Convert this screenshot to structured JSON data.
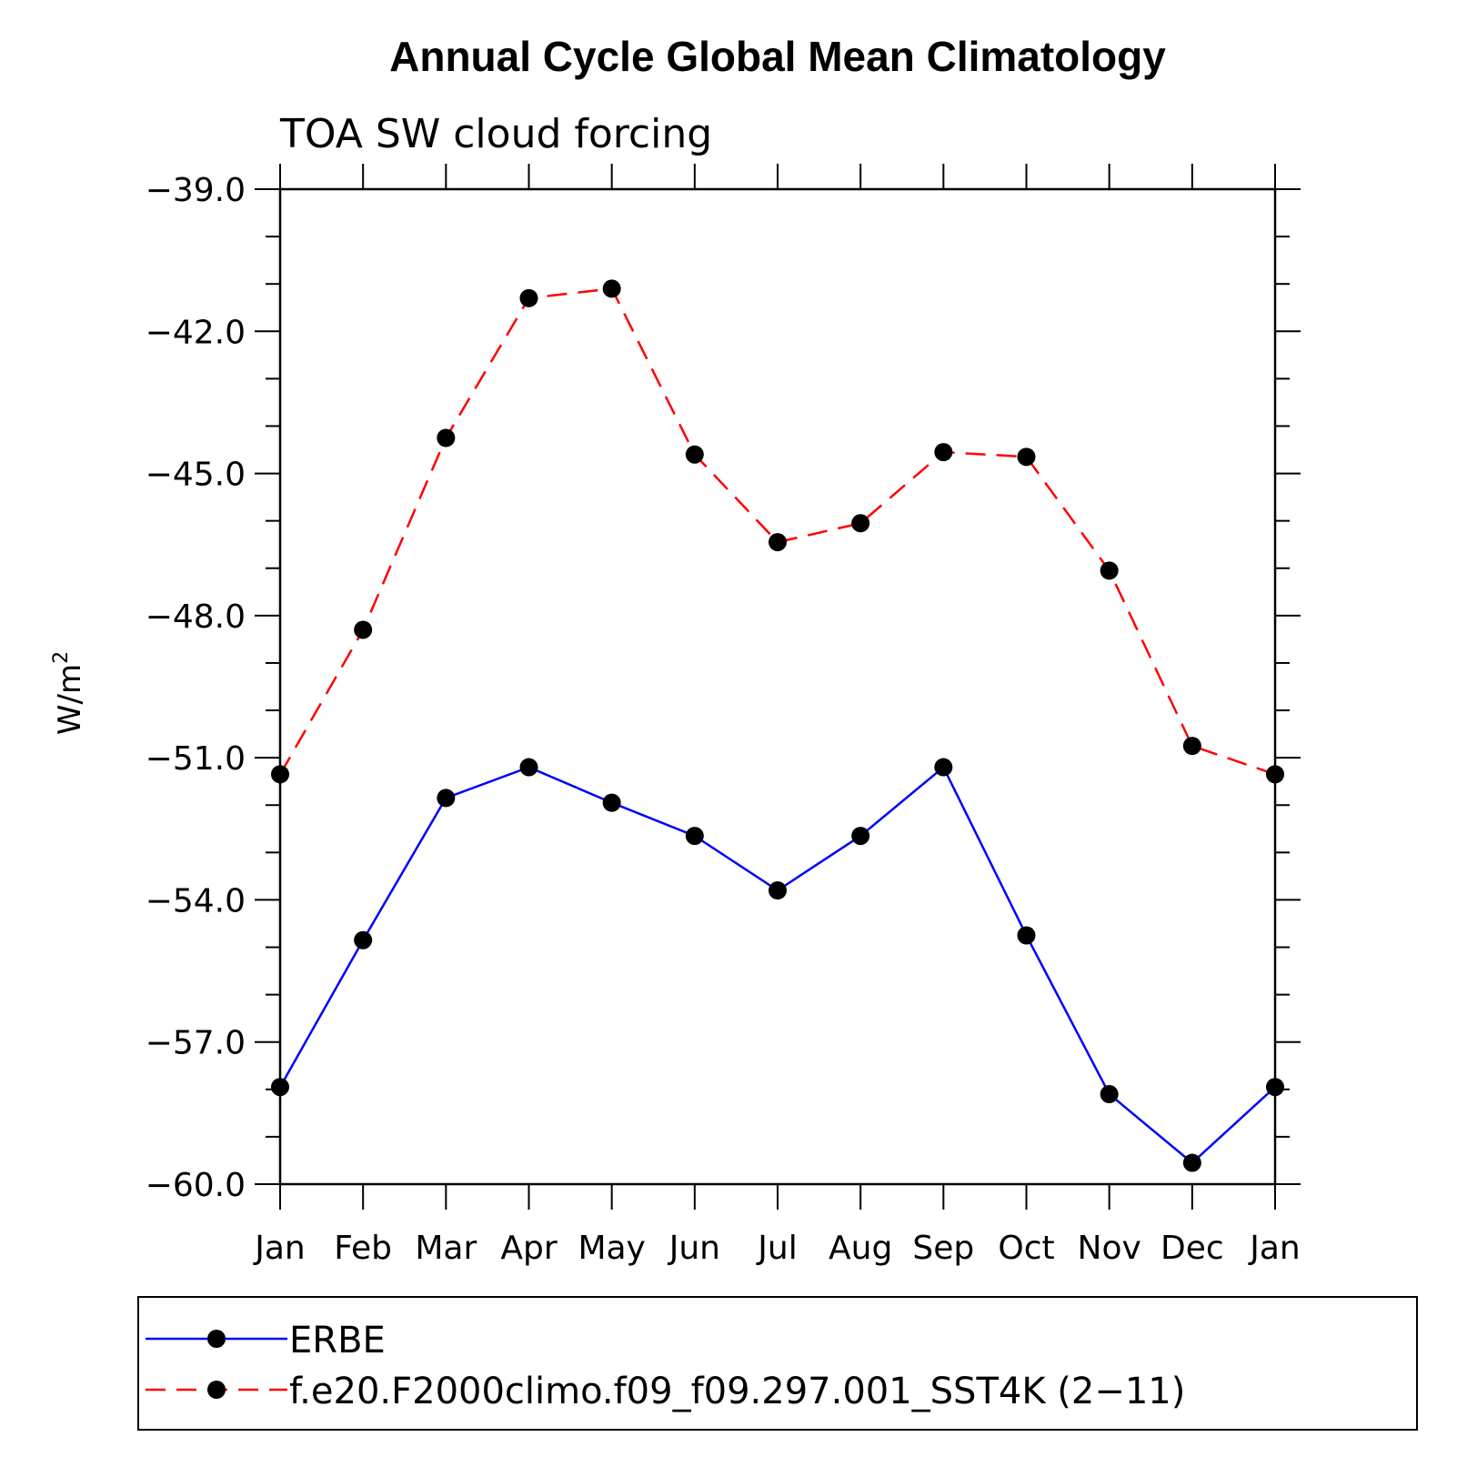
{
  "chart_data": {
    "type": "line",
    "title": "Annual Cycle Global Mean Climatology",
    "subtitle": "TOA SW cloud forcing",
    "ylabel": "W/m",
    "ylabel_superscript": "2",
    "xlabel": "",
    "categories": [
      "Jan",
      "Feb",
      "Mar",
      "Apr",
      "May",
      "Jun",
      "Jul",
      "Aug",
      "Sep",
      "Oct",
      "Nov",
      "Dec",
      "Jan"
    ],
    "ylim": [
      -60.0,
      -39.0
    ],
    "yticks": [
      "-39.0",
      "-42.0",
      "-45.0",
      "-48.0",
      "-51.0",
      "-54.0",
      "-57.0",
      "-60.0"
    ],
    "series": [
      {
        "name": "ERBE",
        "color": "#0000ff",
        "dash": "solid",
        "values": [
          -57.95,
          -54.85,
          -51.85,
          -51.2,
          -51.95,
          -52.65,
          -53.8,
          -52.65,
          -51.2,
          -54.75,
          -58.1,
          -59.55,
          -57.95
        ]
      },
      {
        "name": "f.e20.F2000climo.f09_f09.297.001_SST4K (2−11)",
        "color": "#ff0000",
        "dash": "dashed",
        "values": [
          -51.35,
          -48.3,
          -44.25,
          -41.3,
          -41.1,
          -44.6,
          -46.45,
          -46.05,
          -44.55,
          -44.65,
          -47.05,
          -50.75,
          -51.35
        ]
      }
    ],
    "marker_color": "#000000",
    "legend_position": "bottom",
    "grid": false
  }
}
